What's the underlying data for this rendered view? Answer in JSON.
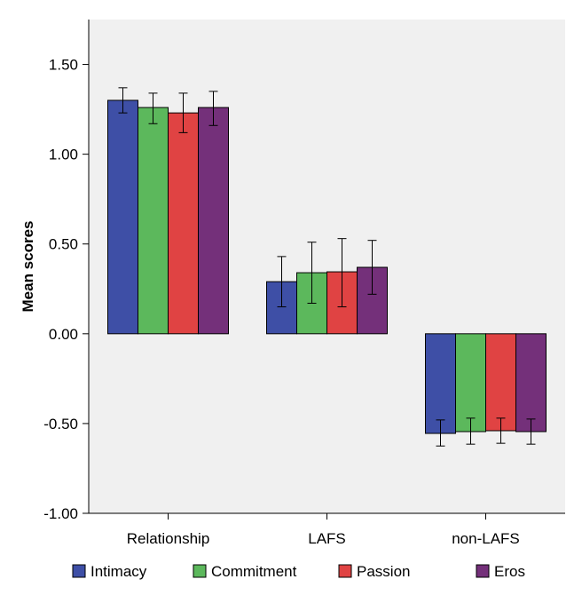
{
  "chart_data": {
    "type": "bar",
    "title": "",
    "xlabel": "",
    "ylabel": "Mean scores",
    "ylim": [
      -1.0,
      1.75
    ],
    "yticks": [
      -1.0,
      -0.5,
      0.0,
      0.5,
      1.0,
      1.5
    ],
    "ytick_labels": [
      "-1.00",
      "-0.50",
      "0.00",
      "0.50",
      "1.00",
      "1.50"
    ],
    "categories": [
      "Relationship",
      "LAFS",
      "non-LAFS"
    ],
    "series": [
      {
        "name": "Intimacy",
        "color": "#3e4fa6",
        "values": [
          1.3,
          0.29,
          -0.555
        ],
        "error": [
          [
            1.23,
            1.37
          ],
          [
            0.15,
            0.43
          ],
          [
            -0.625,
            -0.48
          ]
        ]
      },
      {
        "name": "Commitment",
        "color": "#5cb85c",
        "values": [
          1.26,
          0.34,
          -0.545
        ],
        "error": [
          [
            1.17,
            1.34
          ],
          [
            0.17,
            0.51
          ],
          [
            -0.615,
            -0.47
          ]
        ]
      },
      {
        "name": "Passion",
        "color": "#e04343",
        "values": [
          1.23,
          0.345,
          -0.54
        ],
        "error": [
          [
            1.12,
            1.34
          ],
          [
            0.15,
            0.53
          ],
          [
            -0.61,
            -0.47
          ]
        ]
      },
      {
        "name": "Eros",
        "color": "#74307a",
        "values": [
          1.26,
          0.37,
          -0.545
        ],
        "error": [
          [
            1.16,
            1.35
          ],
          [
            0.22,
            0.52
          ],
          [
            -0.615,
            -0.475
          ]
        ]
      }
    ],
    "grid": false,
    "legend_position": "bottom",
    "plot_background": "#f0f0f0"
  }
}
